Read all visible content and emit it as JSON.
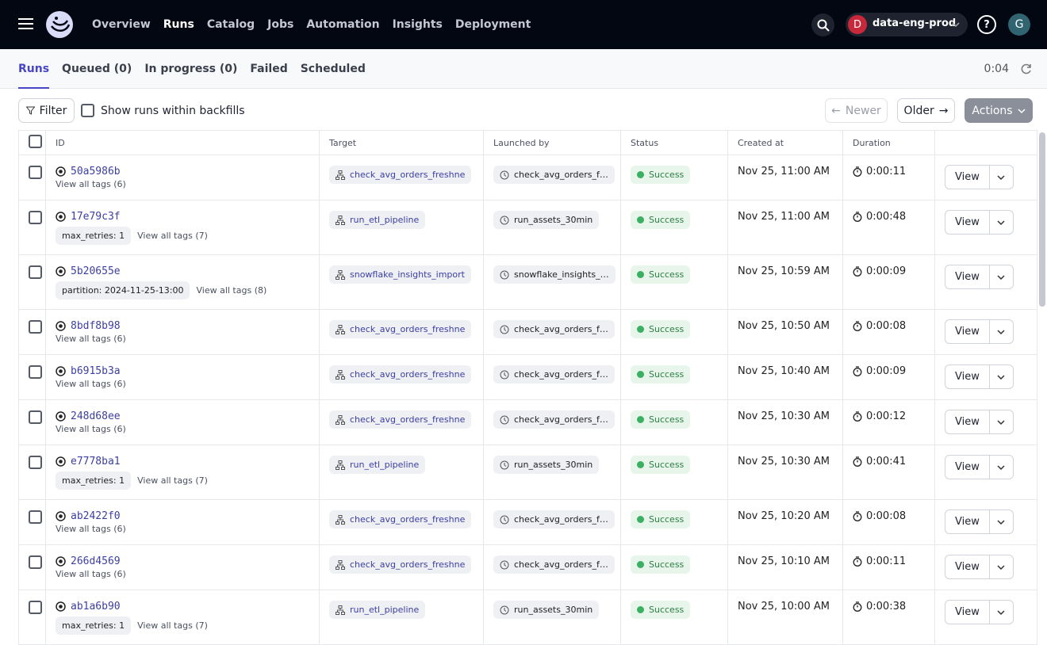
{
  "nav": {
    "items": [
      "Overview",
      "Runs",
      "Catalog",
      "Jobs",
      "Automation",
      "Insights",
      "Deployment"
    ]
  },
  "deployment": {
    "avatar": "D",
    "name": "data-eng-prod"
  },
  "user_avatar": "G",
  "tabs": [
    "Runs",
    "Queued (0)",
    "In progress (0)",
    "Failed",
    "Scheduled"
  ],
  "refresh": "0:04",
  "toolbar": {
    "filter": "Filter",
    "backfills": "Show runs within backfills",
    "newer": "Newer",
    "older": "Older",
    "actions": "Actions"
  },
  "table": {
    "columns": [
      "ID",
      "Target",
      "Launched by",
      "Status",
      "Created at",
      "Duration"
    ],
    "view_label": "View",
    "rows": [
      {
        "id": "50a5986b",
        "tags": [],
        "tags_link": "View all tags (6)",
        "target": "check_avg_orders_freshne",
        "launched_by": "check_avg_orders_f…",
        "status": "Success",
        "created_at": "Nov 25, 11:00 AM",
        "duration": "0:00:11"
      },
      {
        "id": "17e79c3f",
        "tags": [
          "max_retries: 1"
        ],
        "tags_link": "View all tags (7)",
        "target": "run_etl_pipeline",
        "launched_by": "run_assets_30min",
        "status": "Success",
        "created_at": "Nov 25, 11:00 AM",
        "duration": "0:00:48"
      },
      {
        "id": "5b20655e",
        "tags": [
          "partition: 2024-11-25-13:00"
        ],
        "tags_link": "View all tags (8)",
        "target": "snowflake_insights_import",
        "launched_by": "snowflake_insights_…",
        "status": "Success",
        "created_at": "Nov 25, 10:59 AM",
        "duration": "0:00:09"
      },
      {
        "id": "8bdf8b98",
        "tags": [],
        "tags_link": "View all tags (6)",
        "target": "check_avg_orders_freshne",
        "launched_by": "check_avg_orders_f…",
        "status": "Success",
        "created_at": "Nov 25, 10:50 AM",
        "duration": "0:00:08"
      },
      {
        "id": "b6915b3a",
        "tags": [],
        "tags_link": "View all tags (6)",
        "target": "check_avg_orders_freshne",
        "launched_by": "check_avg_orders_f…",
        "status": "Success",
        "created_at": "Nov 25, 10:40 AM",
        "duration": "0:00:09"
      },
      {
        "id": "248d68ee",
        "tags": [],
        "tags_link": "View all tags (6)",
        "target": "check_avg_orders_freshne",
        "launched_by": "check_avg_orders_f…",
        "status": "Success",
        "created_at": "Nov 25, 10:30 AM",
        "duration": "0:00:12"
      },
      {
        "id": "e7778ba1",
        "tags": [
          "max_retries: 1"
        ],
        "tags_link": "View all tags (7)",
        "target": "run_etl_pipeline",
        "launched_by": "run_assets_30min",
        "status": "Success",
        "created_at": "Nov 25, 10:30 AM",
        "duration": "0:00:41"
      },
      {
        "id": "ab2422f0",
        "tags": [],
        "tags_link": "View all tags (6)",
        "target": "check_avg_orders_freshne",
        "launched_by": "check_avg_orders_f…",
        "status": "Success",
        "created_at": "Nov 25, 10:20 AM",
        "duration": "0:00:08"
      },
      {
        "id": "266d4569",
        "tags": [],
        "tags_link": "View all tags (6)",
        "target": "check_avg_orders_freshne",
        "launched_by": "check_avg_orders_f…",
        "status": "Success",
        "created_at": "Nov 25, 10:10 AM",
        "duration": "0:00:11"
      },
      {
        "id": "ab1a6b90",
        "tags": [
          "max_retries: 1"
        ],
        "tags_link": "View all tags (7)",
        "target": "run_etl_pipeline",
        "launched_by": "run_assets_30min",
        "status": "Success",
        "created_at": "Nov 25, 10:00 AM",
        "duration": "0:00:38"
      }
    ]
  }
}
